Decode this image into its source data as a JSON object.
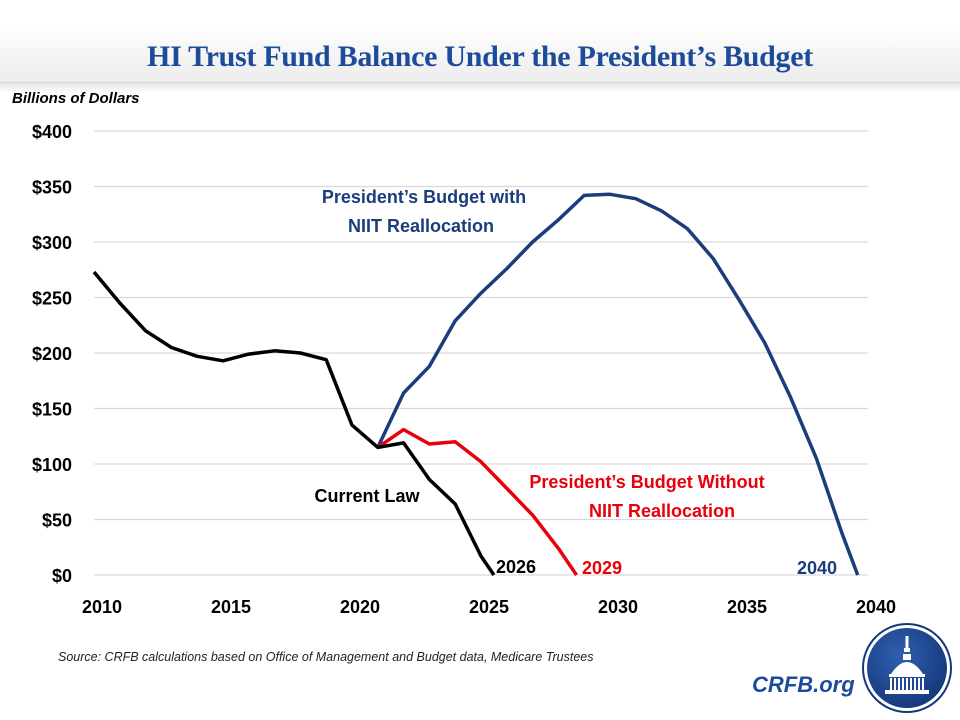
{
  "chart_data": {
    "type": "line",
    "title": "HI Trust Fund Balance Under the President’s Budget",
    "ylabel": "Billions of Dollars",
    "xlabel": "",
    "xlim": [
      2010,
      2040
    ],
    "ylim": [
      0,
      400
    ],
    "grid": true,
    "x_ticks": [
      2010,
      2015,
      2020,
      2025,
      2030,
      2035,
      2040
    ],
    "x_tick_labels": [
      "2010",
      "2015",
      "2020",
      "2025",
      "2030",
      "2035",
      "2040"
    ],
    "y_ticks": [
      0,
      50,
      100,
      150,
      200,
      250,
      300,
      350,
      400
    ],
    "y_tick_labels": [
      "$0",
      "$50",
      "$100",
      "$150",
      "$200",
      "$250",
      "$300",
      "$350",
      "$400"
    ],
    "series": [
      {
        "name": "Current Law",
        "color": "#000000",
        "x": [
          2010,
          2011,
          2012,
          2013,
          2014,
          2015,
          2016,
          2017,
          2018,
          2019,
          2020,
          2021,
          2022,
          2023,
          2024,
          2025,
          2025.5
        ],
        "values": [
          273,
          245,
          220,
          205,
          197,
          193,
          199,
          202,
          200,
          194,
          135,
          115,
          119,
          86,
          64,
          17,
          0
        ]
      },
      {
        "name": "President’s Budget with NIIT Reallocation",
        "color": "#1a3d7c",
        "x": [
          2021,
          2022,
          2023,
          2024,
          2025,
          2026,
          2027,
          2028,
          2029,
          2030,
          2031,
          2032,
          2033,
          2034,
          2035,
          2036,
          2037,
          2038,
          2039,
          2039.6
        ],
        "values": [
          115,
          164,
          188,
          229,
          254,
          276,
          300,
          320,
          342,
          343,
          339,
          328,
          312,
          285,
          248,
          209,
          160,
          105,
          37,
          0
        ]
      },
      {
        "name": "President’s Budget Without NIIT Reallocation",
        "color": "#e8000b",
        "x": [
          2021,
          2022,
          2023,
          2024,
          2025,
          2026,
          2027,
          2028,
          2028.7
        ],
        "values": [
          115,
          131,
          118,
          120,
          102,
          78,
          54,
          24,
          0
        ]
      }
    ],
    "annotations": {
      "current_law": "Current Law",
      "with_niit_line1": "President’s Budget with",
      "with_niit_line2": "NIIT Reallocation",
      "without_niit_line1": "President’s Budget Without",
      "without_niit_line2": "NIIT Reallocation",
      "depletion_current_law": "2026",
      "depletion_without_niit": "2029",
      "depletion_with_niit": "2040"
    },
    "legend": "none (inline labels)"
  },
  "footer": {
    "source": "Source: CRFB calculations based on Office of Management and Budget data, Medicare Trustees",
    "brand": "CRFB.org",
    "logo": "capitol-dome-logo"
  },
  "colors": {
    "title": "#1c4b9a",
    "with_niit": "#1a3d7c",
    "without_niit": "#e8000b",
    "current_law": "#000000",
    "grid": "#d9d9d9"
  }
}
